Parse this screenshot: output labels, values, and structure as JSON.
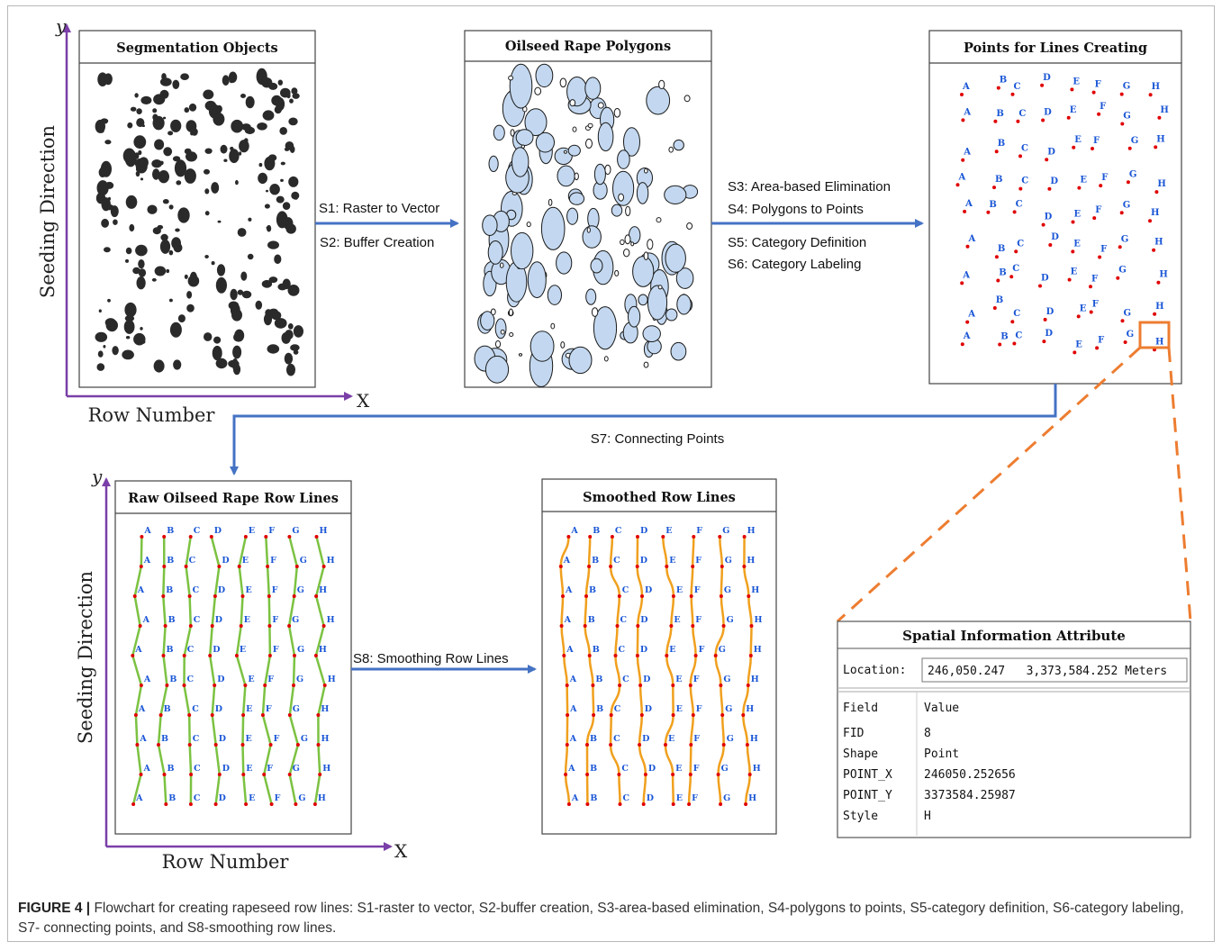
{
  "panels": {
    "segmentation": {
      "title": "Segmentation Objects"
    },
    "polygons": {
      "title": "Oilseed Rape Polygons"
    },
    "points": {
      "title": "Points for Lines Creating"
    },
    "raw_lines": {
      "title": "Raw Oilseed Rape Row Lines"
    },
    "smoothed": {
      "title": "Smoothed Row Lines"
    }
  },
  "axes": {
    "y_symbol": "y",
    "x_symbol": "X",
    "y_label": "Seeding Direction",
    "x_label": "Row Number"
  },
  "steps": {
    "s1": "S1: Raster to Vector",
    "s2": "S2: Buffer Creation",
    "s3": "S3: Area-based Elimination",
    "s4": "S4: Polygons to Points",
    "s5": "S5: Category Definition",
    "s6": "S6: Category Labeling",
    "s7": "S7: Connecting Points",
    "s8": "S8: Smoothing Row Lines"
  },
  "attribute_table": {
    "title": "Spatial Information Attribute",
    "location_label": "Location:",
    "location_value": "246,050.247   3,373,584.252 Meters",
    "header": [
      "Field",
      "Value"
    ],
    "rows": [
      [
        "FID",
        "8"
      ],
      [
        "Shape",
        "Point"
      ],
      [
        "POINT_X",
        "246050.252656"
      ],
      [
        "POINT_Y",
        "3373584.25987"
      ],
      [
        "Style",
        "H"
      ]
    ]
  },
  "row_categories": [
    "A",
    "B",
    "C",
    "D",
    "E",
    "F",
    "G",
    "H"
  ],
  "caption": {
    "label": "FIGURE 4 |",
    "text": " Flowchart for creating rapeseed row lines: S1-raster to vector, S2-buffer creation, S3-area-based elimination, S4-polygons to points, S5-category definition, S6-category labeling, S7- connecting points, and S8-smoothing row lines."
  },
  "colors": {
    "axis": "#7a3fa8",
    "flow_arrow": "#4472c4",
    "callout": "#ed7d31",
    "point": "#e00000",
    "point_label": "#1a56d6",
    "raw_line": "#7cc242",
    "smooth_line": "#f0a01e",
    "polygon_fill": "#c3d8f0",
    "blob": "#2a2a2a"
  }
}
